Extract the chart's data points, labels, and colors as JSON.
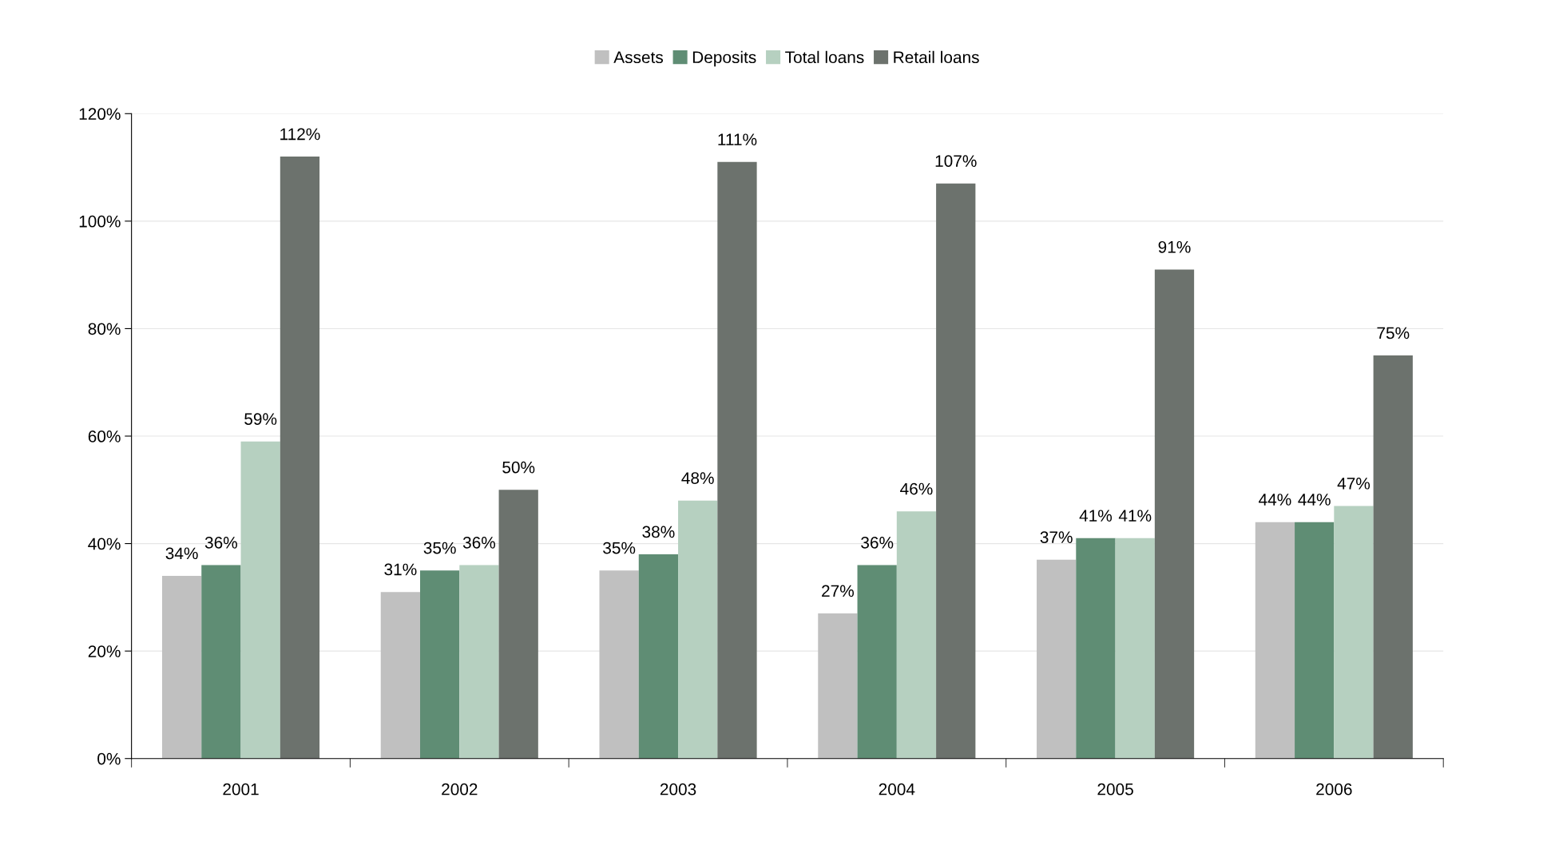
{
  "chart_data": {
    "type": "bar",
    "categories": [
      "2001",
      "2002",
      "2003",
      "2004",
      "2005",
      "2006"
    ],
    "series": [
      {
        "name": "Assets",
        "color": "#c0c0c0",
        "values": [
          34,
          31,
          35,
          27,
          37,
          44
        ],
        "value_labels": [
          "34%",
          "31%",
          "35%",
          "27%",
          "37%",
          "44%"
        ]
      },
      {
        "name": "Deposits",
        "color": "#5f8d74",
        "values": [
          36,
          35,
          38,
          36,
          41,
          44
        ],
        "value_labels": [
          "36%",
          "35%",
          "38%",
          "36%",
          "41%",
          "44%"
        ]
      },
      {
        "name": "Total loans",
        "color": "#b6d0c0",
        "values": [
          59,
          36,
          48,
          46,
          41,
          47
        ],
        "value_labels": [
          "59%",
          "36%",
          "48%",
          "46%",
          "41%",
          "47%"
        ]
      },
      {
        "name": "Retail loans",
        "color": "#6c726d",
        "values": [
          112,
          50,
          111,
          107,
          91,
          75
        ],
        "value_labels": [
          "112%",
          "50%",
          "111%",
          "107%",
          "91%",
          "75%"
        ]
      }
    ],
    "ylim": [
      0,
      120
    ],
    "yticks": [
      {
        "value": 0,
        "label": "0%"
      },
      {
        "value": 20,
        "label": "20%"
      },
      {
        "value": 40,
        "label": "40%"
      },
      {
        "value": 60,
        "label": "60%"
      },
      {
        "value": 80,
        "label": "80%"
      },
      {
        "value": 100,
        "label": "100%"
      },
      {
        "value": 120,
        "label": "120%"
      }
    ],
    "grid": "y",
    "legend": "top"
  }
}
